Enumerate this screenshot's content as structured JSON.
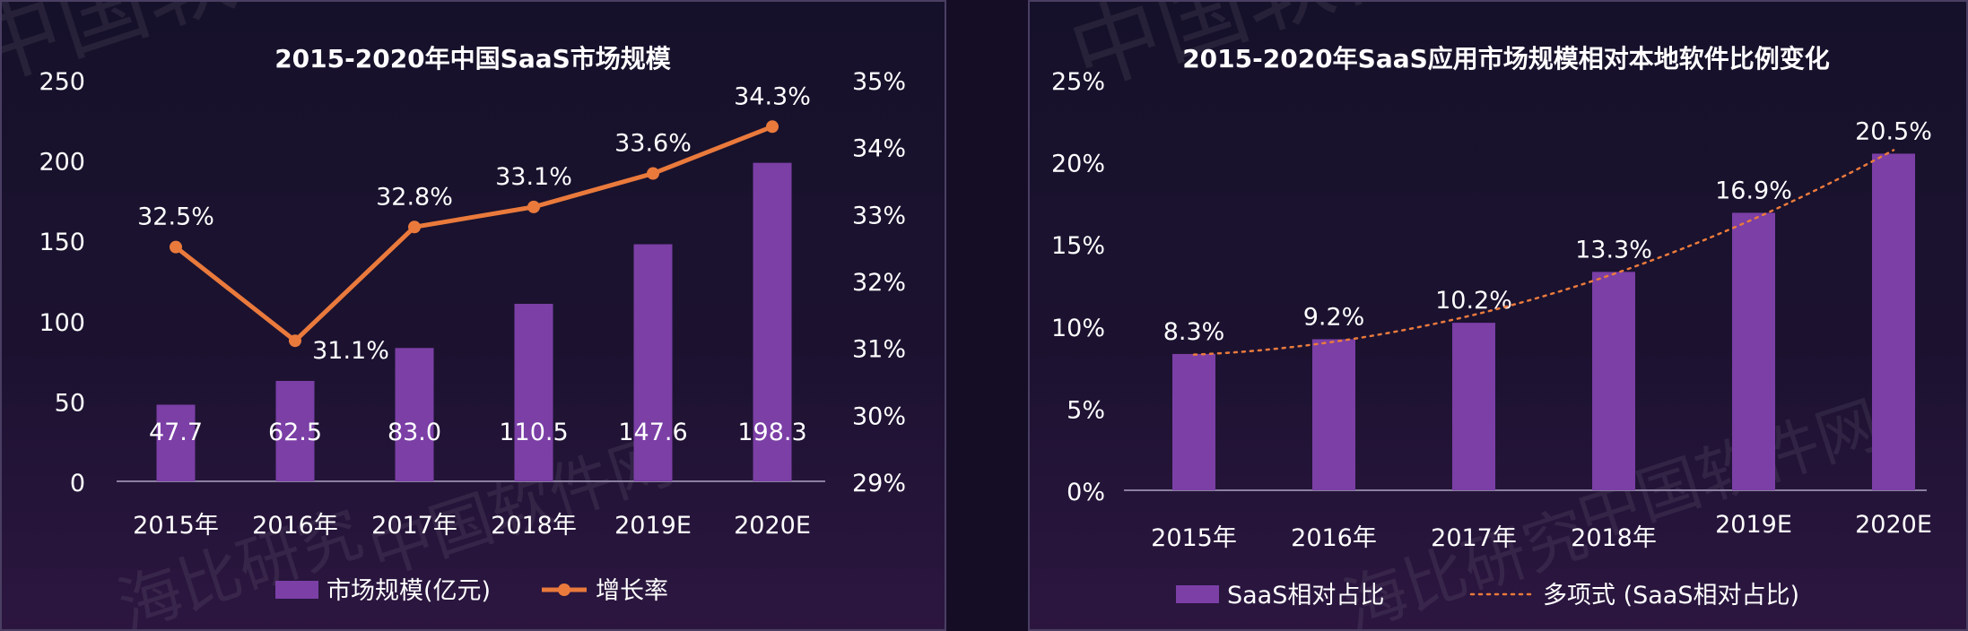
{
  "colors": {
    "bar": "#7b3fa6",
    "line": "#ea7a3c",
    "text": "#ffffff",
    "axis": "#8a7fa0"
  },
  "watermark": {
    "text_1": "中国软件网",
    "text_2": "海比研究"
  },
  "chart_data": [
    {
      "type": "bar",
      "title": "2015-2020年中国SaaS市场规模",
      "categories": [
        "2015年",
        "2016年",
        "2017年",
        "2018年",
        "2019E",
        "2020E"
      ],
      "series": [
        {
          "name": "市场规模(亿元)",
          "type": "bar",
          "values": [
            47.7,
            62.5,
            83.0,
            110.5,
            147.6,
            198.3
          ],
          "labels": [
            "47.7",
            "62.5",
            "83.0",
            "110.5",
            "147.6",
            "198.3"
          ]
        },
        {
          "name": "增长率",
          "type": "line",
          "axis": "right",
          "values": [
            32.5,
            31.1,
            32.8,
            33.1,
            33.6,
            34.3
          ],
          "labels": [
            "32.5%",
            "31.1%",
            "32.8%",
            "33.1%",
            "33.6%",
            "34.3%"
          ]
        }
      ],
      "y_left": {
        "min": 0,
        "max": 250,
        "ticks": [
          "0",
          "50",
          "100",
          "150",
          "200",
          "250"
        ]
      },
      "y_right": {
        "min": 29,
        "max": 35,
        "ticks": [
          "29%",
          "30%",
          "31%",
          "32%",
          "33%",
          "34%",
          "35%"
        ]
      },
      "legend": {
        "position": "bottom"
      },
      "grid": false
    },
    {
      "type": "bar",
      "title": "2015-2020年SaaS应用市场规模相对本地软件比例变化",
      "categories": [
        "2015年",
        "2016年",
        "2017年",
        "2018年",
        "2019E",
        "2020E"
      ],
      "series": [
        {
          "name": "SaaS相对占比",
          "type": "bar",
          "values": [
            8.3,
            9.2,
            10.2,
            13.3,
            16.9,
            20.5
          ],
          "labels": [
            "8.3%",
            "9.2%",
            "10.2%",
            "13.3%",
            "16.9%",
            "20.5%"
          ]
        },
        {
          "name": "多项式 (SaaS相对占比)",
          "type": "trendline"
        }
      ],
      "y": {
        "min": 0,
        "max": 25,
        "ticks": [
          "0%",
          "5%",
          "10%",
          "15%",
          "20%",
          "25%"
        ]
      },
      "legend": {
        "position": "bottom"
      },
      "grid": false
    }
  ]
}
